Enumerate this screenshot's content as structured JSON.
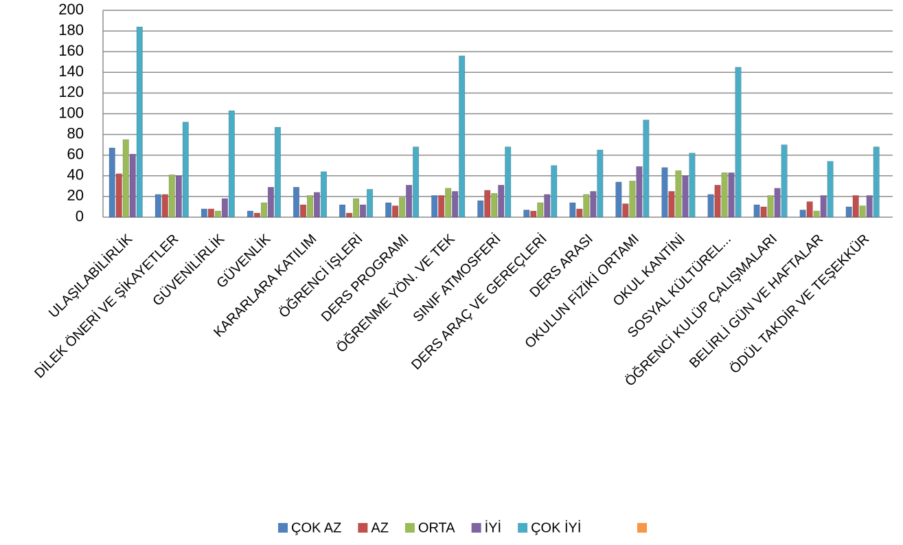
{
  "chart_data": {
    "type": "bar",
    "categories": [
      "ULAŞILABİLİRLİK",
      "DİLEK ÖNERİ VE ŞİKAYETLER",
      "GÜVENİLİRLİK",
      "GÜVENLİK",
      "KARARLARA KATILIM",
      "ÖĞRENCİ İŞLERİ",
      "DERS PROGRAMI",
      "ÖĞRENME YÖN. VE TEK",
      "SINIF ATMOSFERİ",
      "DERS ARAÇ VE GEREÇLERİ",
      "DERS ARASI",
      "OKULUN FİZİKİ ORTAMI",
      "OKUL KANTİNİ",
      "SOSYAL KÜLTÜREL...",
      "ÖĞRENCİ KULÜP ÇALIŞMALARI",
      "BELİRLİ GÜN VE HAFTALAR",
      "ÖDÜL TAKDİR VE TEŞEKKÜR"
    ],
    "series": [
      {
        "name": "ÇOK AZ",
        "color": "#4f81bd",
        "values": [
          67,
          22,
          8,
          6,
          29,
          12,
          14,
          21,
          16,
          7,
          14,
          34,
          48,
          22,
          12,
          7,
          10
        ]
      },
      {
        "name": "AZ",
        "color": "#c0504d",
        "values": [
          42,
          22,
          8,
          4,
          12,
          4,
          11,
          21,
          26,
          6,
          8,
          13,
          25,
          31,
          10,
          15,
          21
        ]
      },
      {
        "name": "ORTA",
        "color": "#9bbb59",
        "values": [
          75,
          41,
          6,
          14,
          21,
          18,
          19,
          28,
          23,
          14,
          22,
          35,
          45,
          43,
          21,
          6,
          11
        ]
      },
      {
        "name": "İYİ",
        "color": "#8064a2",
        "values": [
          61,
          40,
          18,
          29,
          24,
          12,
          31,
          25,
          31,
          22,
          25,
          49,
          40,
          43,
          28,
          21,
          21
        ]
      },
      {
        "name": "ÇOK İYİ",
        "color": "#4bacc6",
        "values": [
          184,
          92,
          103,
          87,
          44,
          27,
          68,
          156,
          68,
          50,
          65,
          94,
          62,
          145,
          70,
          54,
          68
        ]
      }
    ],
    "ylim": [
      0,
      200
    ],
    "yticks": [
      0,
      20,
      40,
      60,
      80,
      100,
      120,
      140,
      160,
      180,
      200
    ],
    "grid": true
  }
}
